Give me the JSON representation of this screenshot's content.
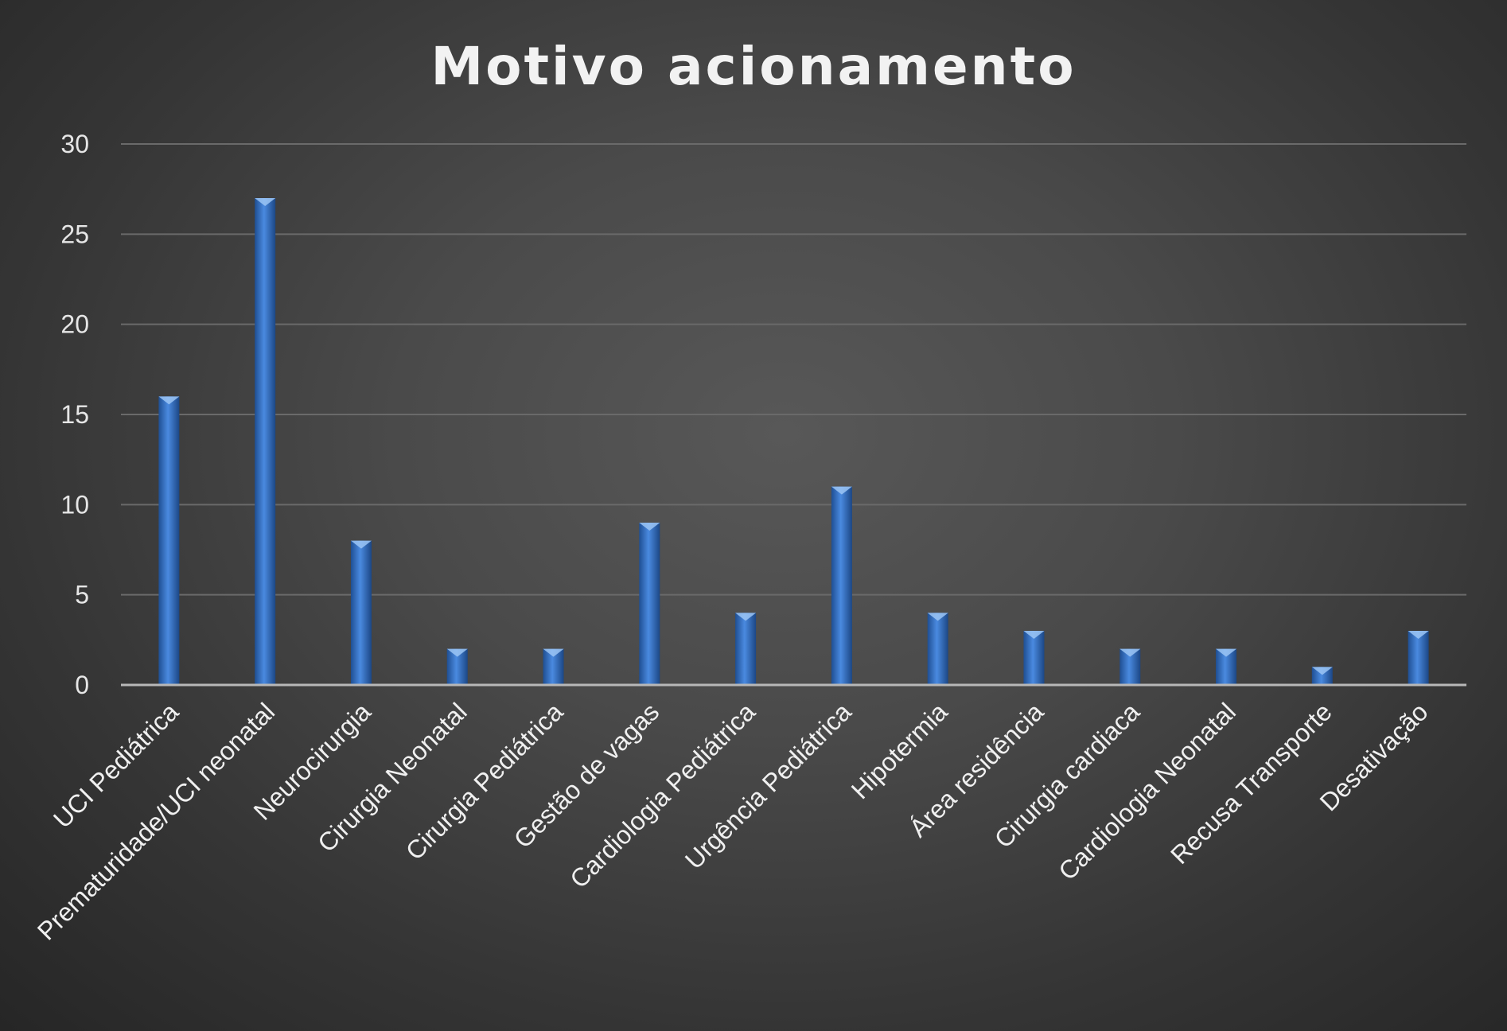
{
  "chart_data": {
    "type": "bar",
    "title": "Motivo acionamento",
    "categories": [
      "UCI Pediátrica",
      "Prematuridade/UCI neonatal",
      "Neurocirurgia",
      "Cirurgia Neonatal",
      "Cirurgia Pediátrica",
      "Gestão de vagas",
      "Cardiologia Pediátrica",
      "Urgência Pediátrica",
      "Hipotermia",
      "Área residência",
      "Cirurgia cardiaca",
      "Cardiologia Neonatal",
      "Recusa Transporte",
      "Desativação"
    ],
    "values": [
      16,
      27,
      8,
      2,
      2,
      9,
      4,
      11,
      4,
      3,
      2,
      2,
      1,
      3
    ],
    "ylim": [
      0,
      30
    ],
    "yticks": [
      0,
      5,
      10,
      15,
      20,
      25,
      30
    ],
    "grid": true,
    "legend": "none",
    "bar_color": "#3a78c9"
  }
}
